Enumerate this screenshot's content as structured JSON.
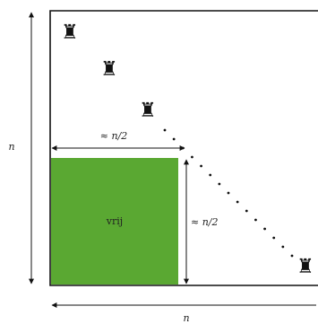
{
  "colors": {
    "free_region": "#5aa832",
    "stroke": "#111111"
  },
  "labels": {
    "n_vertical": "n",
    "n_horizontal": "n",
    "half_width": "≈ n/2",
    "half_height": "≈ n/2",
    "free": "vrij"
  },
  "pieces": [
    {
      "name": "rook",
      "glyph": "♜"
    },
    {
      "name": "rook",
      "glyph": "♜"
    },
    {
      "name": "rook",
      "glyph": "♜"
    },
    {
      "name": "rook",
      "glyph": "♜"
    }
  ]
}
